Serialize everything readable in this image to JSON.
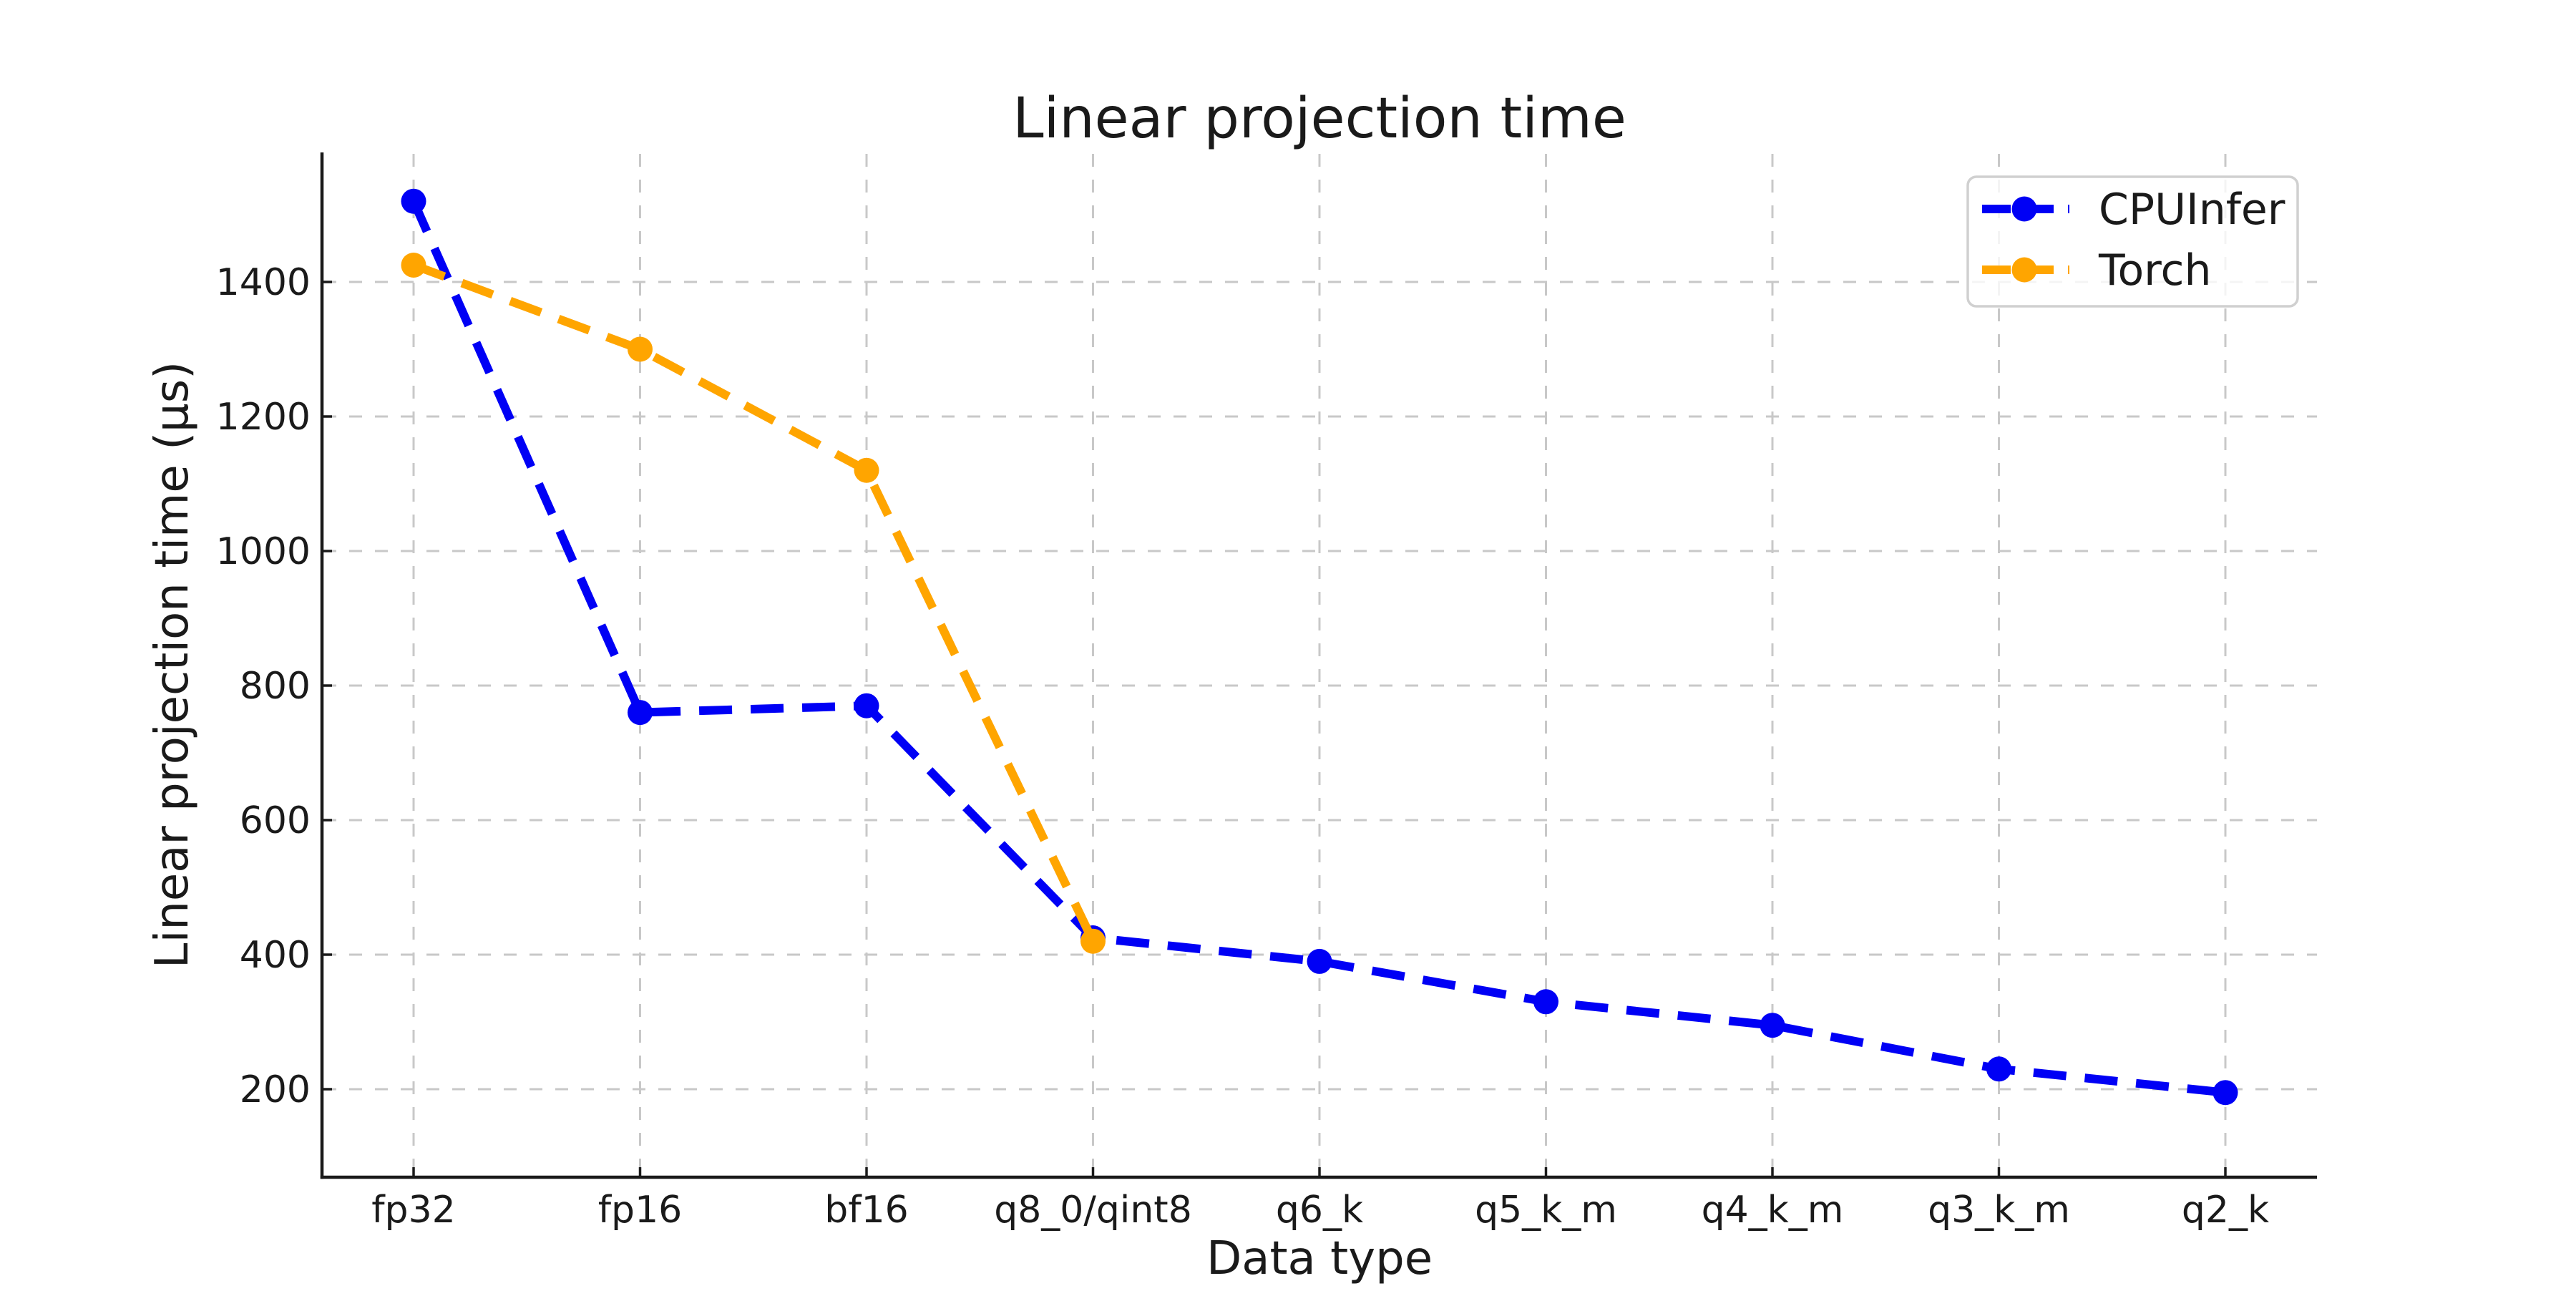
{
  "chart_data": {
    "type": "line",
    "title": "Linear projection time",
    "xlabel": "Data type",
    "ylabel": "Linear projection time (µs)",
    "categories": [
      "fp32",
      "fp16",
      "bf16",
      "q8_0/qint8",
      "q6_k",
      "q5_k_m",
      "q4_k_m",
      "q3_k_m",
      "q2_k"
    ],
    "series": [
      {
        "name": "CPUInfer",
        "color": "#0000f5",
        "values": [
          1520,
          760,
          770,
          425,
          390,
          330,
          295,
          230,
          195
        ]
      },
      {
        "name": "Torch",
        "color": "#ffa500",
        "values": [
          1425,
          1300,
          1120,
          420,
          null,
          null,
          null,
          null,
          null
        ]
      }
    ],
    "y_ticks": [
      200,
      400,
      600,
      800,
      1000,
      1200,
      1400
    ],
    "ylim": [
      70,
      1595
    ],
    "grid": true,
    "grid_style": "dashed",
    "line_style": "dashed",
    "marker": "circle",
    "legend_position": "upper right"
  },
  "colors": {
    "background": "#ffffff",
    "grid": "#c8c8c8",
    "spine": "#1a1a1a",
    "text": "#1a1a1a",
    "legend_border": "#d0d0d0",
    "legend_fill": "rgba(255,255,255,0.8)"
  }
}
